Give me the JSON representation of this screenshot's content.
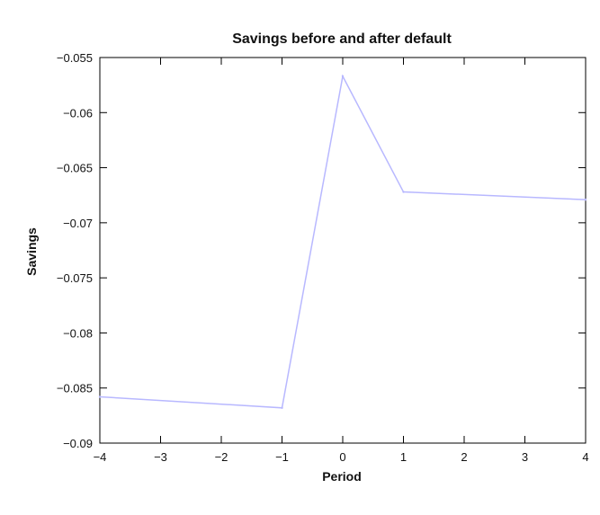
{
  "chart_data": {
    "type": "line",
    "title": "Savings before and after default",
    "xlabel": "Period",
    "ylabel": "Savings",
    "xlim": [
      -4,
      4
    ],
    "ylim": [
      -0.09,
      -0.055
    ],
    "xticks": [
      -4,
      -3,
      -2,
      -1,
      0,
      1,
      2,
      3,
      4
    ],
    "xtick_labels": [
      "−4",
      "−3",
      "−2",
      "−1",
      "0",
      "1",
      "2",
      "3",
      "4"
    ],
    "yticks": [
      -0.055,
      -0.06,
      -0.065,
      -0.07,
      -0.075,
      -0.08,
      -0.085,
      -0.09
    ],
    "ytick_labels": [
      "−0.055",
      "−0.06",
      "−0.065",
      "−0.07",
      "−0.075",
      "−0.08",
      "−0.085",
      "−0.09"
    ],
    "grid": false,
    "series": [
      {
        "x": [
          -4,
          -1,
          0,
          1,
          4
        ],
        "values": [
          -0.0858,
          -0.0868,
          -0.0567,
          -0.0672,
          -0.0679
        ],
        "color": "#b8b8ff"
      }
    ]
  }
}
